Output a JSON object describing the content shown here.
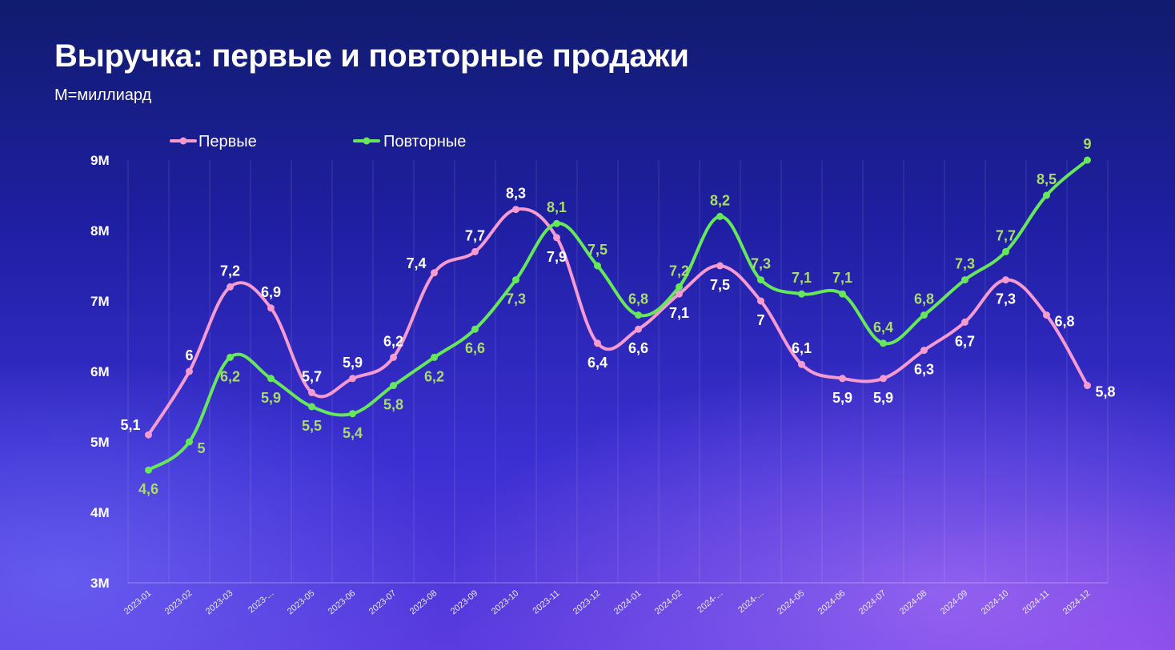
{
  "header": {
    "title": "Выручка: первые и повторные продажи",
    "subtitle": "M=миллиард"
  },
  "colors": {
    "first": "#f59bd0",
    "repeat": "#66e85a",
    "repeat_label": "#a9dc6a",
    "first_label": "#ffffff"
  },
  "chart_data": {
    "type": "line",
    "categories": [
      "2023-01",
      "2023-02",
      "2023-03",
      "2023-...",
      "2023-05",
      "2023-06",
      "2023-07",
      "2023-08",
      "2023-09",
      "2023-10",
      "2023-11",
      "2023-12",
      "2024-01",
      "2024-02",
      "2024-...",
      "2024-...",
      "2024-05",
      "2024-06",
      "2024-07",
      "2024-08",
      "2024-09",
      "2024-10",
      "2024-11",
      "2024-12"
    ],
    "series": [
      {
        "name": "Первые",
        "values": [
          5.1,
          6,
          7.2,
          6.9,
          5.7,
          5.9,
          6.2,
          7.4,
          7.7,
          8.3,
          7.9,
          6.4,
          6.6,
          7.1,
          7.5,
          7,
          6.1,
          5.9,
          5.9,
          6.3,
          6.7,
          7.3,
          6.8,
          5.8
        ],
        "labels": [
          "5,1",
          "6",
          "7,2",
          "6,9",
          "5,7",
          "5,9",
          "6,2",
          "7,4",
          "7,7",
          "8,3",
          "7,9",
          "6,4",
          "6,6",
          "7,1",
          "7,5",
          "7",
          "6,1",
          "5,9",
          "5,9",
          "6,3",
          "6,7",
          "7,3",
          "6,8",
          "5,8"
        ]
      },
      {
        "name": "Повторные",
        "values": [
          4.6,
          5,
          6.2,
          5.9,
          5.5,
          5.4,
          5.8,
          6.2,
          6.6,
          7.3,
          8.1,
          7.5,
          6.8,
          7.2,
          8.2,
          7.3,
          7.1,
          7.1,
          6.4,
          6.8,
          7.3,
          7.7,
          8.5,
          9
        ],
        "labels": [
          "4,6",
          "5",
          "6,2",
          "5,9",
          "5,5",
          "5,4",
          "5,8",
          "6,2",
          "6,6",
          "7,3",
          "8,1",
          "7,5",
          "6,8",
          "7,2",
          "8,2",
          "7,3",
          "7,1",
          "7,1",
          "6,4",
          "6,8",
          "7,3",
          "7,7",
          "8,5",
          "9"
        ]
      }
    ],
    "ylim": [
      3,
      9
    ],
    "yticks": [
      3,
      4,
      5,
      6,
      7,
      8,
      9
    ],
    "ytick_labels": [
      "3M",
      "4M",
      "5M",
      "6M",
      "7M",
      "8M",
      "9M"
    ],
    "grid": "vertical",
    "legend_position": "top-left",
    "smooth": true
  }
}
